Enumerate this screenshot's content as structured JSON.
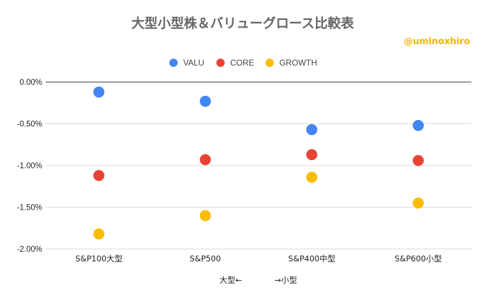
{
  "chart_data": {
    "type": "scatter",
    "title": "大型小型株＆バリューグロース比較表",
    "watermark": "@uminoxhiro",
    "xlabel_left": "大型←",
    "xlabel_right": "→小型",
    "ylabel": "",
    "categories": [
      "S&P100大型",
      "S&P500",
      "S&P400中型",
      "S&P600小型"
    ],
    "ylim": [
      -2.0,
      0.0
    ],
    "yticks": [
      0.0,
      -0.5,
      -1.0,
      -1.5,
      -2.0
    ],
    "ytick_labels": [
      "0.00%",
      "-0.50%",
      "-1.00%",
      "-1.50%",
      "-2.00%"
    ],
    "series": [
      {
        "name": "VALU",
        "color": "#4285f4",
        "values": [
          -0.12,
          -0.23,
          -0.57,
          -0.52
        ]
      },
      {
        "name": "CORE",
        "color": "#ea4335",
        "values": [
          -1.12,
          -0.93,
          -0.87,
          -0.94
        ]
      },
      {
        "name": "GROWTH",
        "color": "#fbbc04",
        "values": [
          -1.82,
          -1.6,
          -1.14,
          -1.45
        ]
      }
    ]
  }
}
